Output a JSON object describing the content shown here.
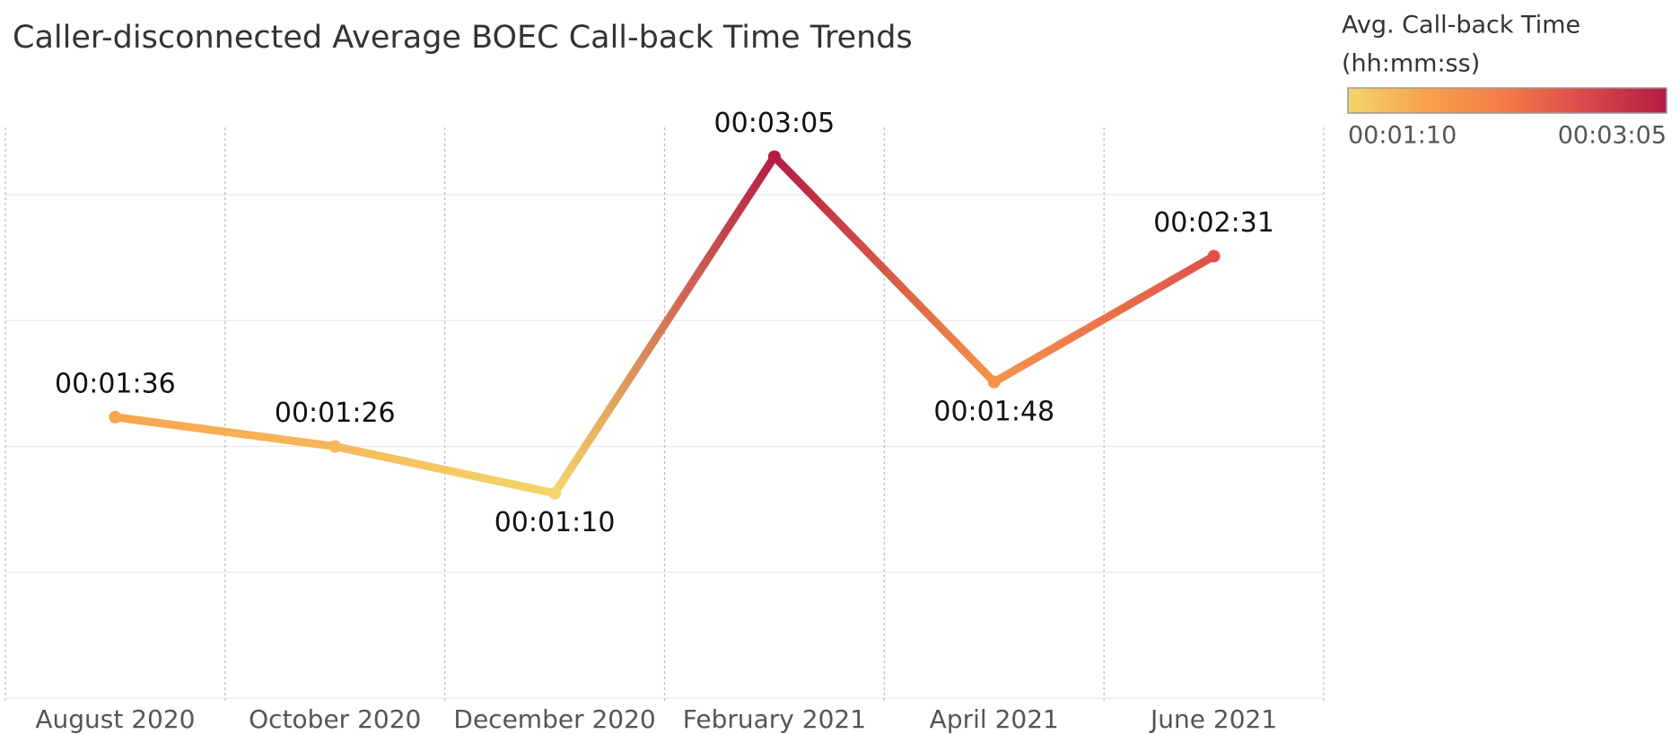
{
  "chart_data": {
    "type": "line",
    "title": "Caller-disconnected Average BOEC Call-back Time Trends",
    "categories": [
      "August 2020",
      "October 2020",
      "December 2020",
      "February 2021",
      "April 2021",
      "June 2021"
    ],
    "values": [
      96,
      86,
      70,
      185,
      108,
      151
    ],
    "value_labels": [
      "00:01:36",
      "00:01:26",
      "00:01:10",
      "00:03:05",
      "00:01:48",
      "00:02:31"
    ],
    "ylim": [
      0,
      195
    ],
    "yticks": [
      0,
      43,
      86,
      129,
      172
    ],
    "grid": true,
    "color_legend": {
      "title": [
        "Avg. Call-back Time",
        "(hh:mm:ss)"
      ],
      "colors": [
        "#f3d66b",
        "#f8a04c",
        "#f27a48",
        "#d9484a",
        "#b51b43"
      ],
      "min": 70,
      "max": 185,
      "min_label": "00:01:10",
      "max_label": "00:03:05"
    }
  }
}
